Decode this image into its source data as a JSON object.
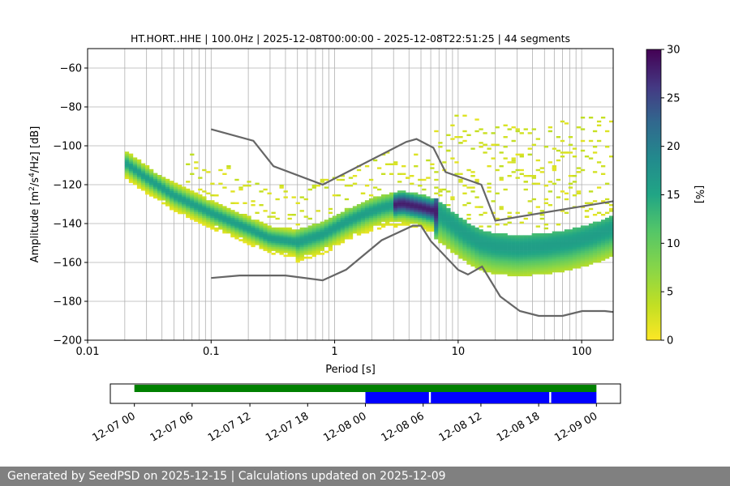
{
  "chart_data": {
    "type": "heatmap",
    "title": "HT.HORT..HHE | 100.0Hz | 2025-12-08T00:00:00 - 2025-12-08T22:51:25 | 44 segments",
    "xlabel": "Period [s]",
    "ylabel_parts": {
      "pre": "Amplitude [m",
      "sup1": "2",
      "mid": "/s",
      "sup2": "4",
      "post": "/Hz] [dB]"
    },
    "xscale": "log",
    "xlim": [
      0.01,
      180
    ],
    "ylim": [
      -200,
      -50
    ],
    "xticks": [
      {
        "v": 0.01,
        "label": "0.01"
      },
      {
        "v": 0.1,
        "label": "0.1"
      },
      {
        "v": 1,
        "label": "1"
      },
      {
        "v": 10,
        "label": "10"
      },
      {
        "v": 100,
        "label": "100"
      }
    ],
    "yticks": [
      {
        "v": -60,
        "label": "−60"
      },
      {
        "v": -80,
        "label": "−80"
      },
      {
        "v": -100,
        "label": "−100"
      },
      {
        "v": -120,
        "label": "−120"
      },
      {
        "v": -140,
        "label": "−140"
      },
      {
        "v": -160,
        "label": "−160"
      },
      {
        "v": -180,
        "label": "−180"
      },
      {
        "v": -200,
        "label": "−200"
      }
    ],
    "grid": true,
    "psd_mode": {
      "period": [
        0.02,
        0.03,
        0.05,
        0.1,
        0.2,
        0.3,
        0.5,
        0.8,
        1.2,
        1.8,
        2.5,
        3.5,
        5,
        6.5,
        8,
        11,
        15,
        20,
        30,
        50,
        80,
        120,
        180
      ],
      "db": [
        -109,
        -117,
        -126,
        -135,
        -143,
        -148,
        -150,
        -146,
        -140,
        -135,
        -132,
        -130,
        -132,
        -134,
        -138,
        -145,
        -150,
        -152,
        -153,
        -152,
        -150,
        -147,
        -143
      ]
    },
    "nhnm": {
      "period": [
        0.1,
        0.22,
        0.32,
        0.8,
        3.8,
        4.6,
        6.3,
        7.9,
        15.4,
        20,
        180
      ],
      "db": [
        -91.5,
        -97.4,
        -110.5,
        -120,
        -98,
        -96.5,
        -101,
        -113.5,
        -120,
        -138.5,
        -128.5
      ]
    },
    "nlnm": {
      "period": [
        0.1,
        0.17,
        0.4,
        0.8,
        1.24,
        2.4,
        4.3,
        5,
        6,
        10,
        12,
        15.6,
        21.9,
        31.6,
        45,
        70,
        101,
        154,
        180
      ],
      "db": [
        -168,
        -166.7,
        -166.7,
        -169.2,
        -163.7,
        -148.6,
        -141.1,
        -141.1,
        -149,
        -163.8,
        -166.2,
        -162.1,
        -177.5,
        -185,
        -187.5,
        -187.5,
        -185,
        -185,
        -185.5
      ]
    },
    "colorbar": {
      "label": "[%]",
      "min": 0,
      "max": 30,
      "ticks": [
        0,
        5,
        10,
        15,
        20,
        25,
        30
      ]
    },
    "timeline": {
      "xticks": [
        "12-07 00",
        "12-07 06",
        "12-07 12",
        "12-07 18",
        "12-08 00",
        "12-08 06",
        "12-08 12",
        "12-08 18",
        "12-09 00"
      ],
      "tick_hours": [
        0,
        6,
        12,
        18,
        24,
        30,
        36,
        42,
        48
      ],
      "range_hours": [
        -2.5,
        50.5
      ],
      "green_span_hours": [
        0,
        48
      ],
      "blue_spans_hours": [
        [
          24,
          30.6
        ],
        [
          30.8,
          43.1
        ],
        [
          43.3,
          48
        ]
      ],
      "colors": {
        "green": "#008000",
        "blue": "#0000ff"
      }
    }
  },
  "footer": {
    "text": "Generated by SeedPSD on 2025-12-15 | Calculations updated on 2025-12-09"
  }
}
